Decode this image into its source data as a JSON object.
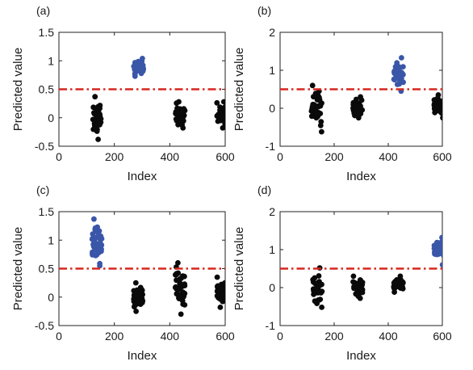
{
  "colors": {
    "default_marker": "#0a0a0a",
    "highlight_marker": "#3a56a8",
    "threshold_line": "#d7261e"
  },
  "chart_data": [
    {
      "type": "scatter",
      "panel_label": "(a)",
      "xlabel": "Index",
      "ylabel": "Predicted value",
      "xlim": [
        0,
        600
      ],
      "ylim": [
        -0.5,
        1.5
      ],
      "xticks": [
        "0",
        "200",
        "400",
        "600"
      ],
      "yticks": [
        "-0.5",
        "0",
        "0.5",
        "1",
        "1.5"
      ],
      "threshold": 0.5,
      "clusters": [
        {
          "x": [
            120,
            153
          ],
          "y": [
            -0.38,
            0.37
          ],
          "n": 40,
          "highlight": false
        },
        {
          "x": [
            270,
            305
          ],
          "y": [
            0.73,
            1.04
          ],
          "n": 45,
          "highlight": true
        },
        {
          "x": [
            420,
            455
          ],
          "y": [
            -0.18,
            0.28
          ],
          "n": 30,
          "highlight": false
        },
        {
          "x": [
            570,
            605
          ],
          "y": [
            -0.18,
            0.28
          ],
          "n": 40,
          "highlight": false
        }
      ]
    },
    {
      "type": "scatter",
      "panel_label": "(b)",
      "xlabel": "Index",
      "ylabel": "Predicted value",
      "xlim": [
        0,
        600
      ],
      "ylim": [
        -1,
        2
      ],
      "xticks": [
        "0",
        "200",
        "400",
        "600"
      ],
      "yticks": [
        "-1",
        "0",
        "1",
        "2"
      ],
      "threshold": 0.5,
      "clusters": [
        {
          "x": [
            115,
            155
          ],
          "y": [
            -0.62,
            0.6
          ],
          "n": 40,
          "highlight": false
        },
        {
          "x": [
            270,
            305
          ],
          "y": [
            -0.25,
            0.3
          ],
          "n": 40,
          "highlight": false
        },
        {
          "x": [
            420,
            457
          ],
          "y": [
            0.45,
            1.33
          ],
          "n": 45,
          "highlight": true
        },
        {
          "x": [
            570,
            605
          ],
          "y": [
            -0.25,
            0.35
          ],
          "n": 40,
          "highlight": false
        }
      ]
    },
    {
      "type": "scatter",
      "panel_label": "(c)",
      "xlabel": "Index",
      "ylabel": "Predicted value",
      "xlim": [
        0,
        600
      ],
      "ylim": [
        -0.5,
        1.5
      ],
      "xticks": [
        "0",
        "200",
        "400",
        "600"
      ],
      "yticks": [
        "-0.5",
        "0",
        "0.5",
        "1",
        "1.5"
      ],
      "threshold": 0.5,
      "clusters": [
        {
          "x": [
            120,
            155
          ],
          "y": [
            0.55,
            1.37
          ],
          "n": 45,
          "highlight": true
        },
        {
          "x": [
            270,
            305
          ],
          "y": [
            -0.25,
            0.25
          ],
          "n": 40,
          "highlight": false
        },
        {
          "x": [
            420,
            455
          ],
          "y": [
            -0.3,
            0.6
          ],
          "n": 40,
          "highlight": false
        },
        {
          "x": [
            570,
            605
          ],
          "y": [
            -0.18,
            0.35
          ],
          "n": 40,
          "highlight": false
        }
      ]
    },
    {
      "type": "scatter",
      "panel_label": "(d)",
      "xlabel": "Index",
      "ylabel": "Predicted value",
      "xlim": [
        0,
        600
      ],
      "ylim": [
        -1,
        2
      ],
      "xticks": [
        "0",
        "200",
        "400",
        "600"
      ],
      "yticks": [
        "-1",
        "0",
        "1",
        "2"
      ],
      "threshold": 0.5,
      "clusters": [
        {
          "x": [
            120,
            155
          ],
          "y": [
            -0.52,
            0.52
          ],
          "n": 40,
          "highlight": false
        },
        {
          "x": [
            270,
            305
          ],
          "y": [
            -0.28,
            0.3
          ],
          "n": 35,
          "highlight": false
        },
        {
          "x": [
            420,
            455
          ],
          "y": [
            -0.12,
            0.3
          ],
          "n": 35,
          "highlight": false
        },
        {
          "x": [
            570,
            605
          ],
          "y": [
            0.6,
            1.32
          ],
          "n": 45,
          "highlight": true
        }
      ]
    }
  ]
}
